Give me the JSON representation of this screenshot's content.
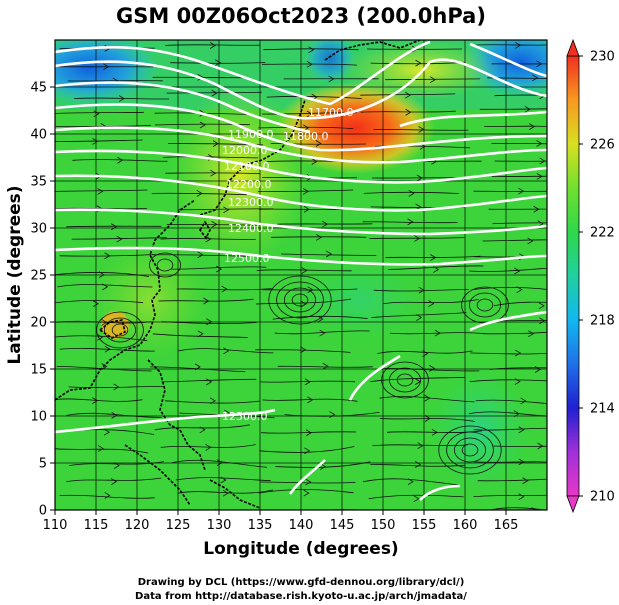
{
  "title": "GSM 00Z06Oct2023 (200.0hPa)",
  "x_axis": {
    "label": "Longitude (degrees)",
    "ticks": [
      "110",
      "115",
      "120",
      "125",
      "130",
      "135",
      "140",
      "145",
      "150",
      "155",
      "160",
      "165"
    ]
  },
  "y_axis": {
    "label": "Latitude  (degrees)",
    "ticks": [
      "0",
      "5",
      "10",
      "15",
      "20",
      "25",
      "30",
      "35",
      "40",
      "45"
    ]
  },
  "colorbar": {
    "ticks": [
      "210",
      "214",
      "218",
      "222",
      "226",
      "230"
    ],
    "min": 210,
    "max": 230
  },
  "contour_labels": [
    "11700.0",
    "11800.0",
    "11900.0",
    "12000.0",
    "12100.0",
    "12200.0",
    "12300.0",
    "12400.0",
    "12500.0",
    "12500.0"
  ],
  "credits": {
    "line1": "Drawing by DCL (https://www.gfd-dennou.org/library/dcl/)",
    "line2": "Data from http://database.rish.kyoto-u.ac.jp/arch/jmadata/"
  },
  "chart_data": {
    "type": "heatmap",
    "title": "GSM 00Z06Oct2023 (200.0hPa)",
    "xlabel": "Longitude (degrees)",
    "ylabel": "Latitude  (degrees)",
    "xlim": [
      110,
      170
    ],
    "ylim": [
      0,
      50
    ],
    "colorbar_range": [
      210,
      230
    ],
    "overlays": [
      "streamlines",
      "geopotential height contours",
      "coastlines",
      "grid"
    ]
  }
}
